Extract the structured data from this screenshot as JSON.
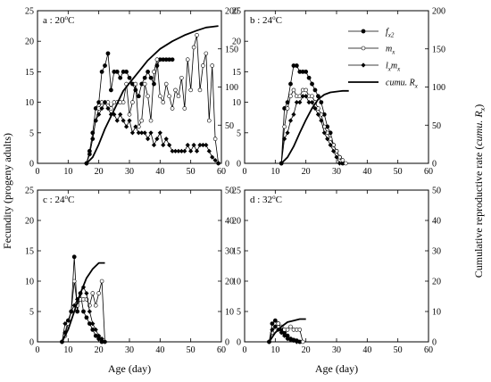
{
  "figure": {
    "ylabel_left": "Fecundity (progeny adults)",
    "ylabel_right": "Cumulative reproductive rate (cumu. Rx)",
    "xlabel": "Age (day)"
  },
  "legend": [
    {
      "key": "fx2",
      "label": "fx2"
    },
    {
      "key": "mx",
      "label": "mx"
    },
    {
      "key": "lxmx",
      "label": "lxmx"
    },
    {
      "key": "cumu",
      "label": "cumu. Rx"
    }
  ],
  "colors": {
    "line": "#000000",
    "open_marker_fill": "#ffffff",
    "background": "#ffffff"
  },
  "chart_data": [
    {
      "type": "line",
      "panel_label": "a : 20°C",
      "xlabel": "Age (day)",
      "ylabel": "Fecundity (progeny adults)",
      "ylabel_right": "Cumulative reproductive rate (cumu. Rx)",
      "xlim": [
        0,
        60
      ],
      "ylim": [
        0,
        25
      ],
      "ylim_right": [
        0,
        200
      ],
      "x_ticks": [
        0,
        10,
        20,
        30,
        40,
        50,
        60
      ],
      "y_ticks": [
        0,
        5,
        10,
        15,
        20,
        25
      ],
      "y_ticks_right": [
        0,
        50,
        100,
        150,
        200
      ],
      "series": [
        {
          "name": "fx2",
          "marker": "filled-circle",
          "x": [
            16,
            17,
            18,
            19,
            20,
            21,
            22,
            23,
            24,
            25,
            26,
            27,
            28,
            29,
            30,
            31,
            32,
            33,
            34,
            35,
            36,
            37,
            38,
            39,
            40,
            41,
            42,
            43,
            44
          ],
          "y": [
            0,
            2,
            5,
            9,
            10,
            15,
            16,
            18,
            12,
            15,
            15,
            14,
            15,
            15,
            14,
            13,
            12,
            11,
            13,
            14,
            15,
            14,
            13,
            16,
            17,
            17,
            17,
            17,
            17
          ]
        },
        {
          "name": "mx",
          "marker": "open-circle",
          "x": [
            16,
            17,
            18,
            19,
            20,
            21,
            22,
            23,
            24,
            25,
            26,
            27,
            28,
            29,
            30,
            31,
            32,
            33,
            34,
            35,
            36,
            37,
            38,
            39,
            40,
            41,
            42,
            43,
            44,
            45,
            46,
            47,
            48,
            49,
            50,
            51,
            52,
            53,
            54,
            55,
            56,
            57,
            58,
            59
          ],
          "y": [
            0,
            1.5,
            4,
            7,
            9,
            10,
            10,
            10,
            9,
            10,
            10,
            10,
            10,
            13,
            8,
            10,
            13,
            6,
            7,
            13,
            11,
            7,
            15,
            17,
            11,
            10,
            13,
            11,
            9,
            12,
            11,
            14,
            9,
            17,
            12,
            19,
            21,
            12,
            16,
            18,
            7,
            16,
            4,
            0
          ]
        },
        {
          "name": "lxmx",
          "marker": "filled-diamond",
          "x": [
            16,
            17,
            18,
            19,
            20,
            21,
            22,
            23,
            24,
            25,
            26,
            27,
            28,
            29,
            30,
            31,
            32,
            33,
            34,
            35,
            36,
            37,
            38,
            39,
            40,
            41,
            42,
            43,
            44,
            45,
            46,
            47,
            48,
            49,
            50,
            51,
            52,
            53,
            54,
            55,
            56,
            57,
            58,
            59
          ],
          "y": [
            0,
            1.5,
            4,
            7,
            8,
            9,
            10,
            9,
            8,
            8,
            7,
            8,
            7,
            6,
            7,
            5,
            6,
            5,
            5,
            5,
            4,
            5,
            3,
            4,
            5,
            3,
            4,
            3,
            2,
            2,
            2,
            2,
            2,
            3,
            2,
            3,
            2,
            3,
            3,
            3,
            2,
            1,
            0.5,
            0
          ]
        },
        {
          "name": "cumu. Rx",
          "axis": "right",
          "marker": "none",
          "x": [
            16,
            18,
            20,
            22,
            25,
            28,
            30,
            33,
            36,
            40,
            44,
            48,
            52,
            55,
            57,
            59
          ],
          "y": [
            0,
            8,
            25,
            45,
            70,
            95,
            105,
            120,
            135,
            150,
            160,
            168,
            174,
            178,
            179,
            180
          ]
        }
      ]
    },
    {
      "type": "line",
      "panel_label": "b : 24°C",
      "xlim": [
        0,
        60
      ],
      "ylim": [
        0,
        25
      ],
      "ylim_right": [
        0,
        200
      ],
      "x_ticks": [
        0,
        10,
        20,
        30,
        40,
        50,
        60
      ],
      "y_ticks": [
        0,
        5,
        10,
        15,
        20,
        25
      ],
      "y_ticks_right": [
        0,
        50,
        100,
        150,
        200
      ],
      "series": [
        {
          "name": "fx2",
          "marker": "filled-circle",
          "x": [
            12,
            13,
            14,
            15,
            16,
            17,
            18,
            19,
            20,
            21,
            22,
            23,
            24,
            25,
            26,
            27,
            28,
            29,
            30,
            31,
            32
          ],
          "y": [
            0,
            9,
            10,
            13,
            16,
            16,
            15,
            15,
            15,
            14,
            13,
            12,
            11,
            10,
            8,
            6,
            5,
            3,
            2,
            1,
            0
          ]
        },
        {
          "name": "mx",
          "marker": "open-circle",
          "x": [
            12,
            13,
            14,
            15,
            16,
            17,
            18,
            19,
            20,
            21,
            22,
            23,
            24,
            25,
            26,
            27,
            28,
            29,
            30,
            31,
            32,
            33
          ],
          "y": [
            0,
            6,
            9,
            11,
            12,
            11,
            11,
            12,
            12,
            11,
            11,
            10,
            9,
            8,
            6,
            5,
            4,
            3,
            2,
            1,
            0.5,
            0
          ]
        },
        {
          "name": "lxmx",
          "marker": "filled-diamond",
          "x": [
            12,
            13,
            14,
            15,
            16,
            17,
            18,
            19,
            20,
            21,
            22,
            23,
            24,
            25,
            26,
            27,
            28,
            29,
            30,
            31
          ],
          "y": [
            0,
            4,
            5,
            7,
            8,
            10,
            10,
            11,
            11,
            10,
            10,
            9,
            8,
            7,
            5,
            4,
            3,
            2,
            1,
            0
          ]
        },
        {
          "name": "cumu. Rx",
          "axis": "right",
          "marker": "none",
          "x": [
            12,
            14,
            16,
            18,
            20,
            22,
            24,
            26,
            28,
            30,
            32,
            34
          ],
          "y": [
            0,
            8,
            22,
            40,
            57,
            72,
            84,
            90,
            93,
            94,
            95,
            95
          ]
        }
      ]
    },
    {
      "type": "line",
      "panel_label": "c : 24°C",
      "xlim": [
        0,
        60
      ],
      "ylim": [
        0,
        25
      ],
      "ylim_right": [
        0,
        50
      ],
      "x_ticks": [
        0,
        10,
        20,
        30,
        40,
        50,
        60
      ],
      "y_ticks": [
        0,
        5,
        10,
        15,
        20,
        25
      ],
      "y_ticks_right": [
        0,
        10,
        20,
        30,
        40,
        50
      ],
      "series": [
        {
          "name": "fx2",
          "marker": "filled-circle",
          "x": [
            8,
            9,
            10,
            11,
            12,
            13,
            14,
            15,
            16,
            17,
            18,
            19,
            20,
            21
          ],
          "y": [
            0,
            1.5,
            3.5,
            5,
            14,
            5,
            8,
            5,
            4,
            3,
            2,
            1,
            0.5,
            0
          ]
        },
        {
          "name": "mx",
          "marker": "open-circle",
          "x": [
            8,
            9,
            10,
            11,
            12,
            13,
            14,
            15,
            16,
            17,
            18,
            19,
            20,
            21,
            22
          ],
          "y": [
            0,
            1,
            3,
            5,
            10,
            6,
            7,
            7,
            7,
            6,
            8,
            6,
            8,
            10,
            0
          ]
        },
        {
          "name": "lxmx",
          "marker": "filled-diamond",
          "x": [
            8,
            9,
            10,
            11,
            12,
            13,
            14,
            15,
            16,
            17,
            18,
            19,
            20,
            21,
            22
          ],
          "y": [
            0,
            3,
            3.5,
            5,
            6,
            7,
            8,
            9,
            8,
            5,
            3,
            2,
            1,
            0.5,
            0
          ]
        },
        {
          "name": "cumu. Rx",
          "axis": "right",
          "marker": "none",
          "x": [
            8,
            10,
            12,
            14,
            16,
            18,
            20,
            22
          ],
          "y": [
            0,
            4,
            10,
            16,
            21,
            24,
            26,
            26
          ]
        }
      ]
    },
    {
      "type": "line",
      "panel_label": "d : 32°C",
      "xlim": [
        0,
        60
      ],
      "ylim": [
        0,
        25
      ],
      "ylim_right": [
        0,
        50
      ],
      "x_ticks": [
        0,
        10,
        20,
        30,
        40,
        50,
        60
      ],
      "y_ticks": [
        0,
        5,
        10,
        15,
        20,
        25
      ],
      "y_ticks_right": [
        0,
        10,
        20,
        30,
        40,
        50
      ],
      "series": [
        {
          "name": "fx2",
          "marker": "filled-circle",
          "x": [
            8,
            9,
            10,
            11,
            12,
            13,
            14,
            15,
            16,
            17,
            18
          ],
          "y": [
            0,
            3,
            3.5,
            3,
            2,
            1.5,
            1,
            0.5,
            0.3,
            0.2,
            0
          ]
        },
        {
          "name": "mx",
          "marker": "open-circle",
          "x": [
            8,
            9,
            10,
            11,
            12,
            13,
            14,
            15,
            16,
            17,
            18,
            19
          ],
          "y": [
            0,
            1.5,
            2.5,
            3,
            2.5,
            2,
            2,
            2.5,
            2,
            2,
            2,
            0
          ]
        },
        {
          "name": "lxmx",
          "marker": "filled-diamond",
          "x": [
            8,
            9,
            10,
            11,
            12,
            13,
            14,
            15,
            16,
            17
          ],
          "y": [
            0,
            2,
            2.5,
            2,
            1.5,
            1,
            0.5,
            0.3,
            0.2,
            0
          ]
        },
        {
          "name": "cumu. Rx",
          "axis": "right",
          "marker": "none",
          "x": [
            8,
            10,
            12,
            14,
            16,
            18,
            20
          ],
          "y": [
            0,
            3,
            5,
            6.5,
            7,
            7.5,
            7.5
          ]
        }
      ]
    }
  ]
}
